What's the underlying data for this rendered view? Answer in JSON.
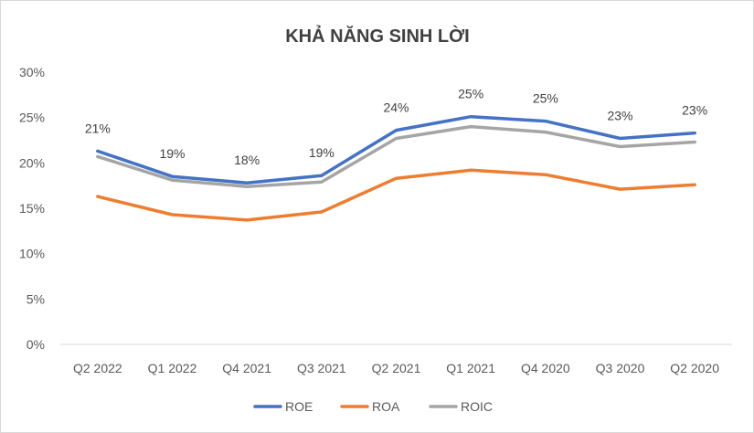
{
  "chart_data": {
    "type": "line",
    "title": "KHẢ NĂNG SINH LỜI",
    "categories": [
      "Q2 2022",
      "Q1 2022",
      "Q4 2021",
      "Q3 2021",
      "Q2 2021",
      "Q1 2021",
      "Q4 2020",
      "Q3 2020",
      "Q2 2020"
    ],
    "ylim": [
      0,
      30
    ],
    "ytick_labels": [
      "0%",
      "5%",
      "10%",
      "15%",
      "20%",
      "25%",
      "30%"
    ],
    "yticks": [
      0,
      5,
      10,
      15,
      20,
      25,
      30
    ],
    "grid": false,
    "legend": "bottom",
    "series": [
      {
        "name": "ROE",
        "color": "#4472c4",
        "values": [
          21.3,
          18.5,
          17.8,
          18.6,
          23.6,
          25.1,
          24.6,
          22.7,
          23.3
        ]
      },
      {
        "name": "ROA",
        "color": "#ed7d31",
        "values": [
          16.3,
          14.3,
          13.7,
          14.6,
          18.3,
          19.2,
          18.7,
          17.1,
          17.6
        ]
      },
      {
        "name": "ROIC",
        "color": "#a5a5a5",
        "values": [
          20.7,
          18.1,
          17.4,
          17.9,
          22.7,
          24.0,
          23.4,
          21.8,
          22.3
        ]
      }
    ],
    "data_labels": {
      "series": "ROE",
      "labels": [
        "21%",
        "19%",
        "18%",
        "19%",
        "24%",
        "25%",
        "25%",
        "23%",
        "23%"
      ]
    }
  }
}
